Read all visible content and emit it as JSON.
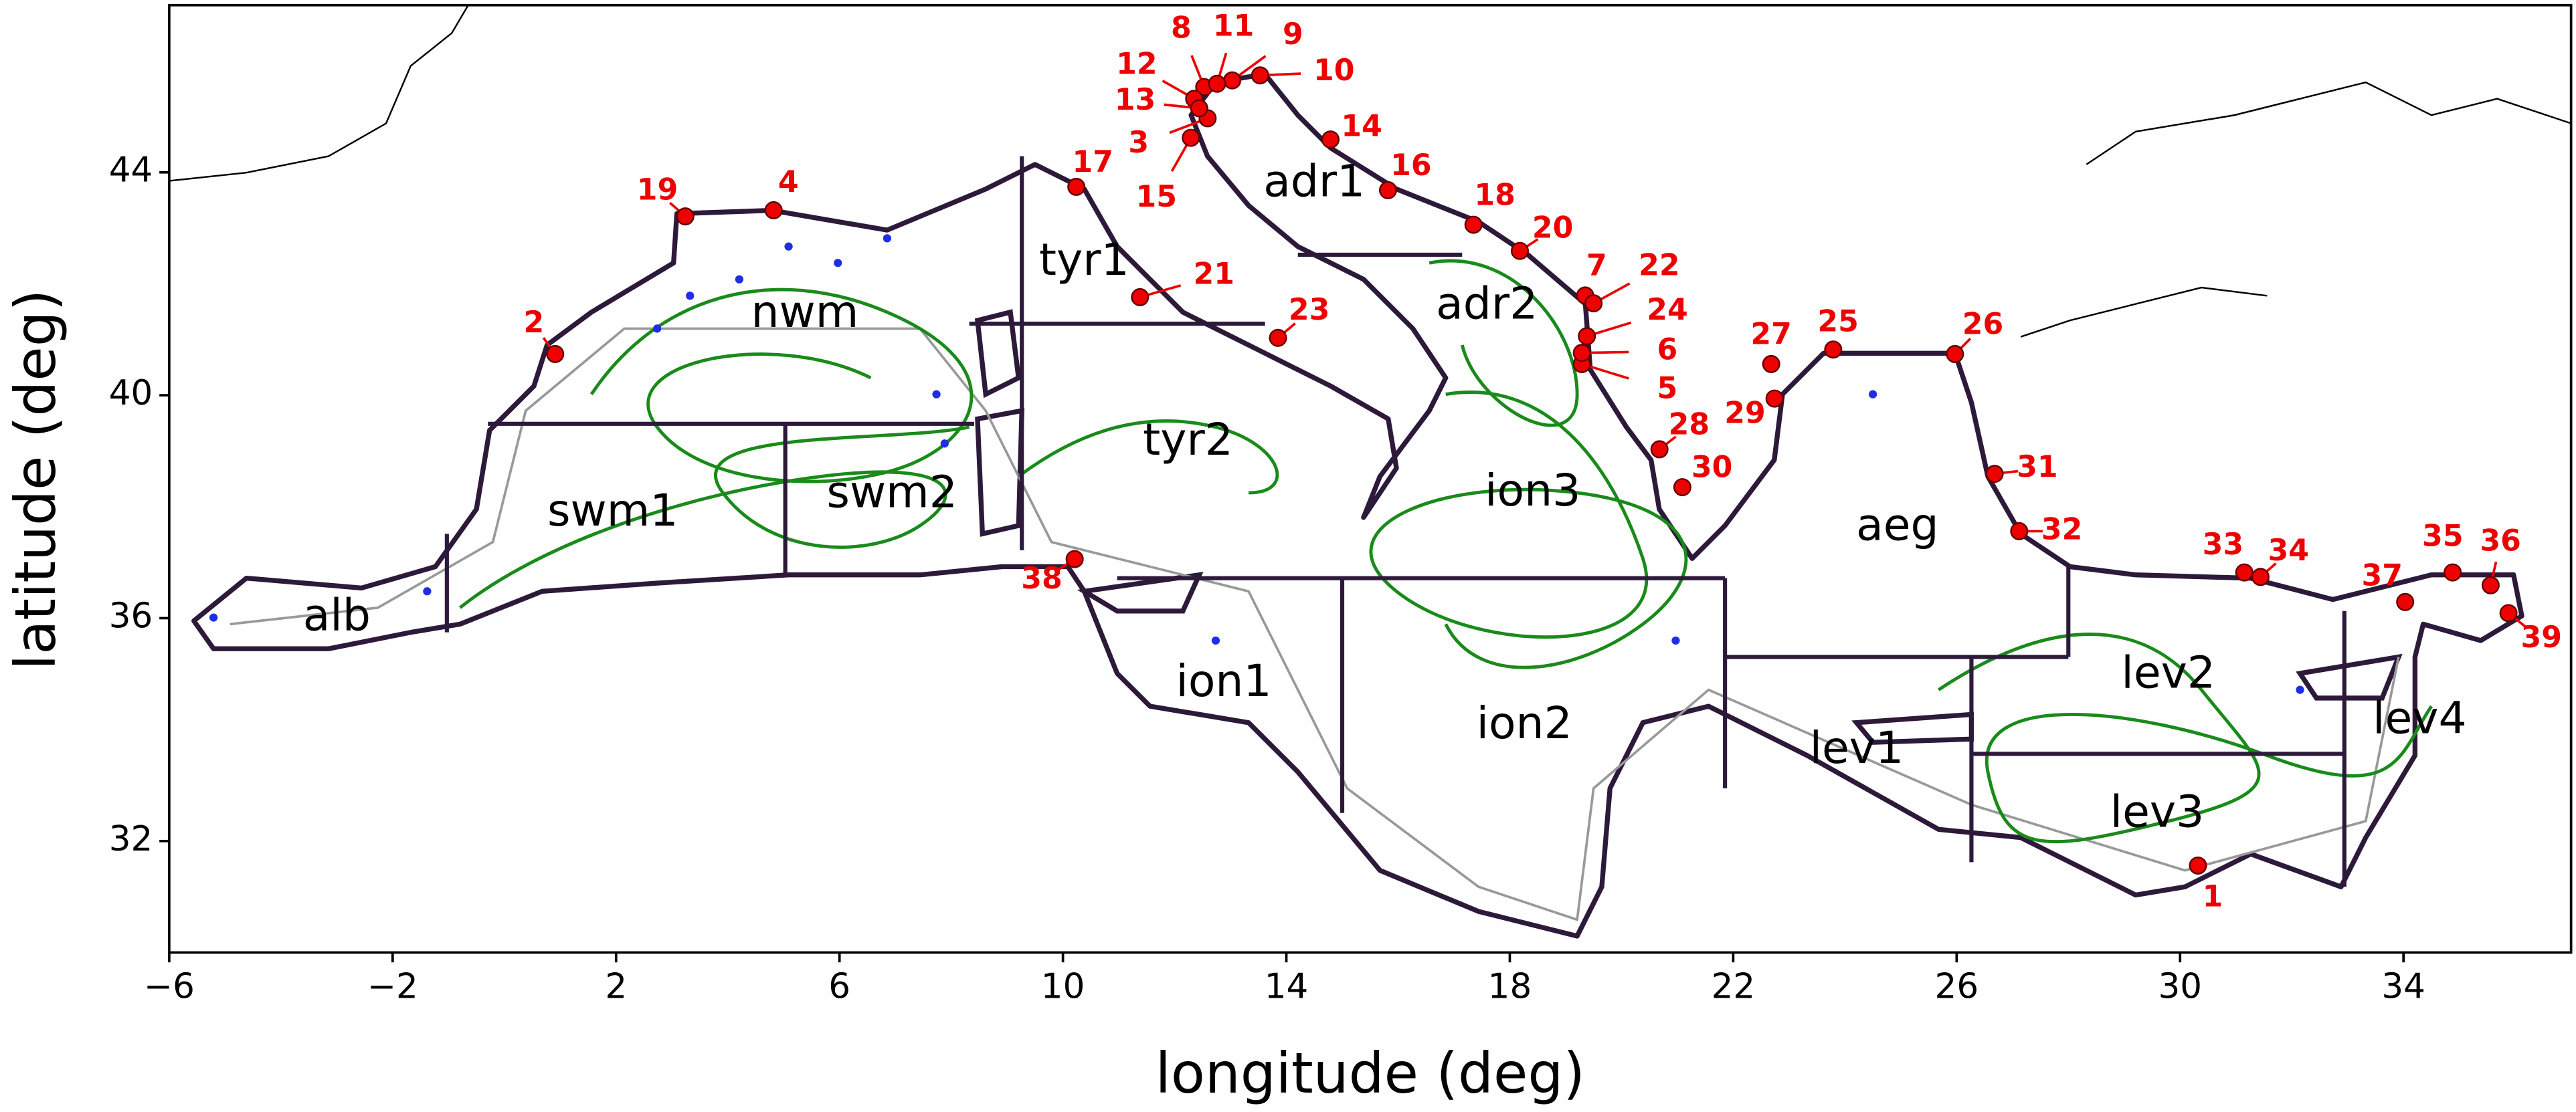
{
  "map": {
    "xlabel": "longitude (deg)",
    "ylabel": "latitude (deg)",
    "xlim": [
      -6,
      37
    ],
    "ylim": [
      30,
      47
    ],
    "xticks": [
      {
        "value": -6,
        "label": "−6"
      },
      {
        "value": -2,
        "label": "−2"
      },
      2,
      6,
      10,
      14,
      18,
      22,
      26,
      30,
      34
    ],
    "yticks": [
      32,
      36,
      40,
      44
    ],
    "regions": [
      {
        "label": "alb",
        "lon": -3.0,
        "lat": 36.0
      },
      {
        "label": "swm1",
        "lon": 1.94,
        "lat": 37.88
      },
      {
        "label": "swm2",
        "lon": 6.94,
        "lat": 38.21
      },
      {
        "label": "nwm",
        "lon": 5.38,
        "lat": 41.44
      },
      {
        "label": "tyr1",
        "lon": 10.38,
        "lat": 42.38
      },
      {
        "label": "tyr2",
        "lon": 12.24,
        "lat": 39.15
      },
      {
        "label": "ion1",
        "lon": 12.88,
        "lat": 34.82
      },
      {
        "label": "ion2",
        "lon": 18.26,
        "lat": 34.06
      },
      {
        "label": "ion3",
        "lon": 18.41,
        "lat": 38.24
      },
      {
        "label": "adr1",
        "lon": 14.5,
        "lat": 43.79
      },
      {
        "label": "adr2",
        "lon": 17.59,
        "lat": 41.59
      },
      {
        "label": "aeg",
        "lon": 24.94,
        "lat": 37.62
      },
      {
        "label": "lev1",
        "lon": 24.21,
        "lat": 33.62
      },
      {
        "label": "lev2",
        "lon": 29.79,
        "lat": 34.97
      },
      {
        "label": "lev3",
        "lon": 29.59,
        "lat": 32.47
      },
      {
        "label": "lev4",
        "lon": 34.29,
        "lat": 34.15
      }
    ],
    "stations": [
      {
        "label": "1",
        "lon": 30.32,
        "lat": 31.56
      },
      {
        "label": "2",
        "lon": 0.91,
        "lat": 40.74
      },
      {
        "label": "3",
        "lon": 12.59,
        "lat": 44.97
      },
      {
        "label": "4",
        "lon": 4.82,
        "lat": 43.32
      },
      {
        "label": "5",
        "lon": 19.29,
        "lat": 40.56
      },
      {
        "label": "6",
        "lon": 19.29,
        "lat": 40.76
      },
      {
        "label": "7",
        "lon": 19.35,
        "lat": 41.79
      },
      {
        "label": "8",
        "lon": 12.53,
        "lat": 45.53
      },
      {
        "label": "9",
        "lon": 13.03,
        "lat": 45.65
      },
      {
        "label": "10",
        "lon": 13.53,
        "lat": 45.74
      },
      {
        "label": "11",
        "lon": 12.76,
        "lat": 45.59
      },
      {
        "label": "12",
        "lon": 12.35,
        "lat": 45.32
      },
      {
        "label": "13",
        "lon": 12.44,
        "lat": 45.15
      },
      {
        "label": "14",
        "lon": 14.79,
        "lat": 44.59
      },
      {
        "label": "15",
        "lon": 12.29,
        "lat": 44.62
      },
      {
        "label": "16",
        "lon": 15.82,
        "lat": 43.68
      },
      {
        "label": "17",
        "lon": 10.24,
        "lat": 43.74
      },
      {
        "label": "18",
        "lon": 17.35,
        "lat": 43.06
      },
      {
        "label": "19",
        "lon": 3.24,
        "lat": 43.21
      },
      {
        "label": "20",
        "lon": 18.18,
        "lat": 42.59
      },
      {
        "label": "21",
        "lon": 11.38,
        "lat": 41.76
      },
      {
        "label": "22",
        "lon": 19.5,
        "lat": 41.65
      },
      {
        "label": "23",
        "lon": 13.85,
        "lat": 41.03
      },
      {
        "label": "24",
        "lon": 19.38,
        "lat": 41.06
      },
      {
        "label": "25",
        "lon": 23.79,
        "lat": 40.82
      },
      {
        "label": "26",
        "lon": 25.97,
        "lat": 40.74
      },
      {
        "label": "27",
        "lon": 22.68,
        "lat": 40.56
      },
      {
        "label": "28",
        "lon": 20.68,
        "lat": 39.03
      },
      {
        "label": "29",
        "lon": 22.74,
        "lat": 39.94
      },
      {
        "label": "30",
        "lon": 21.09,
        "lat": 38.35
      },
      {
        "label": "31",
        "lon": 26.68,
        "lat": 38.59
      },
      {
        "label": "32",
        "lon": 27.12,
        "lat": 37.56
      },
      {
        "label": "33",
        "lon": 31.15,
        "lat": 36.82
      },
      {
        "label": "34",
        "lon": 31.44,
        "lat": 36.74
      },
      {
        "label": "35",
        "lon": 34.88,
        "lat": 36.82
      },
      {
        "label": "36",
        "lon": 35.56,
        "lat": 36.59
      },
      {
        "label": "37",
        "lon": 34.03,
        "lat": 36.29
      },
      {
        "label": "38",
        "lon": 10.21,
        "lat": 37.06
      },
      {
        "label": "39",
        "lon": 35.88,
        "lat": 36.09
      }
    ]
  }
}
